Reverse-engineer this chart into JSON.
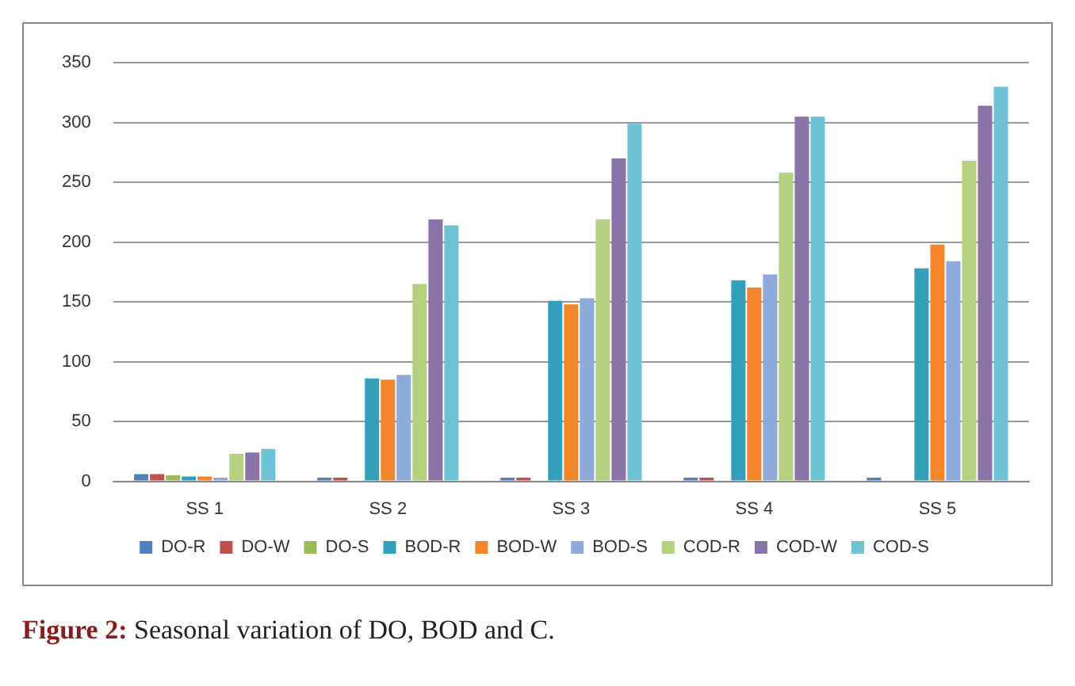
{
  "chart_data": {
    "type": "bar",
    "categories": [
      "SS 1",
      "SS 2",
      "SS 3",
      "SS 4",
      "SS 5"
    ],
    "series": [
      {
        "name": "DO-R",
        "color": "#4f81bd",
        "values": [
          6,
          3,
          3,
          3,
          3
        ]
      },
      {
        "name": "DO-W",
        "color": "#c0504d",
        "values": [
          6,
          3,
          3,
          3,
          null
        ]
      },
      {
        "name": "DO-S",
        "color": "#9bbb59",
        "values": [
          5,
          null,
          null,
          null,
          null
        ]
      },
      {
        "name": "BOD-R",
        "color": "#31a0b8",
        "values": [
          4,
          86,
          151,
          168,
          178
        ]
      },
      {
        "name": "BOD-W",
        "color": "#f7862a",
        "values": [
          4,
          85,
          148,
          162,
          198
        ]
      },
      {
        "name": "BOD-S",
        "color": "#8eaadb",
        "values": [
          3,
          89,
          153,
          173,
          184
        ]
      },
      {
        "name": "COD-R",
        "color": "#b5d17f",
        "values": [
          23,
          165,
          219,
          258,
          268
        ]
      },
      {
        "name": "COD-W",
        "color": "#8a73a8",
        "values": [
          24,
          219,
          270,
          305,
          314
        ]
      },
      {
        "name": "COD-S",
        "color": "#6cc3d6",
        "values": [
          27,
          214,
          299,
          305,
          330
        ]
      }
    ],
    "ylim": [
      0,
      350
    ],
    "yticks": [
      0,
      50,
      100,
      150,
      200,
      250,
      300,
      350
    ],
    "grid": "y",
    "legend": "bottom",
    "annotations": [
      "Figure 2: Seasonal variation of DO, BOD and C."
    ]
  }
}
